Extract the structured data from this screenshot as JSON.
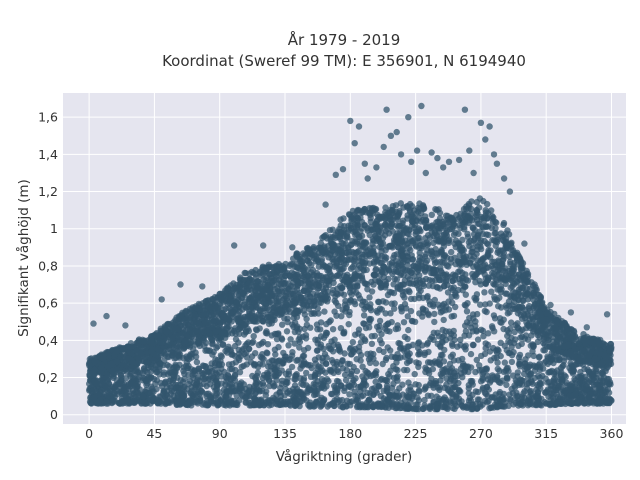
{
  "chart_data": {
    "type": "scatter",
    "title_line1": "År 1979 - 2019",
    "title_line2": "Koordinat (Sweref 99 TM): E 356901, N 6194940",
    "xlabel": "Vågriktning (grader)",
    "ylabel": "Signifikant våghöjd (m)",
    "xlim": [
      -18,
      370
    ],
    "ylim": [
      -0.05,
      1.73
    ],
    "x_ticks": [
      0,
      45,
      90,
      135,
      180,
      225,
      270,
      315,
      360
    ],
    "x_tick_labels": [
      "0",
      "45",
      "90",
      "135",
      "180",
      "225",
      "270",
      "315",
      "360"
    ],
    "y_ticks": [
      0,
      0.2,
      0.4,
      0.6,
      0.8,
      1,
      1.2,
      1.4,
      1.6
    ],
    "y_tick_labels": [
      "0",
      "0,2",
      "0,4",
      "0,6",
      "0,8",
      "1",
      "1,2",
      "1,4",
      "1,6"
    ],
    "grid": true,
    "marker_color": "#33566e",
    "plot_background": "#e5e5ef",
    "envelope": {
      "x": [
        0,
        20,
        45,
        70,
        90,
        110,
        135,
        160,
        180,
        200,
        225,
        250,
        270,
        285,
        300,
        315,
        335,
        360
      ],
      "y_upper": [
        0.3,
        0.36,
        0.44,
        0.58,
        0.65,
        0.78,
        0.83,
        0.95,
        1.1,
        1.12,
        1.15,
        1.08,
        1.18,
        1.05,
        0.8,
        0.58,
        0.45,
        0.38
      ],
      "y_lower": [
        0.06,
        0.06,
        0.06,
        0.05,
        0.05,
        0.05,
        0.05,
        0.04,
        0.04,
        0.04,
        0.03,
        0.03,
        0.03,
        0.04,
        0.05,
        0.05,
        0.06,
        0.06
      ]
    },
    "outliers": [
      {
        "x": 3,
        "y": 0.49
      },
      {
        "x": 12,
        "y": 0.53
      },
      {
        "x": 25,
        "y": 0.48
      },
      {
        "x": 50,
        "y": 0.62
      },
      {
        "x": 63,
        "y": 0.7
      },
      {
        "x": 78,
        "y": 0.69
      },
      {
        "x": 100,
        "y": 0.91
      },
      {
        "x": 120,
        "y": 0.91
      },
      {
        "x": 140,
        "y": 0.9
      },
      {
        "x": 163,
        "y": 1.13
      },
      {
        "x": 170,
        "y": 1.29
      },
      {
        "x": 175,
        "y": 1.32
      },
      {
        "x": 180,
        "y": 1.58
      },
      {
        "x": 183,
        "y": 1.46
      },
      {
        "x": 186,
        "y": 1.55
      },
      {
        "x": 190,
        "y": 1.35
      },
      {
        "x": 192,
        "y": 1.27
      },
      {
        "x": 198,
        "y": 1.33
      },
      {
        "x": 203,
        "y": 1.44
      },
      {
        "x": 205,
        "y": 1.64
      },
      {
        "x": 208,
        "y": 1.5
      },
      {
        "x": 212,
        "y": 1.52
      },
      {
        "x": 215,
        "y": 1.4
      },
      {
        "x": 220,
        "y": 1.6
      },
      {
        "x": 222,
        "y": 1.36
      },
      {
        "x": 226,
        "y": 1.42
      },
      {
        "x": 229,
        "y": 1.66
      },
      {
        "x": 232,
        "y": 1.3
      },
      {
        "x": 236,
        "y": 1.41
      },
      {
        "x": 240,
        "y": 1.38
      },
      {
        "x": 244,
        "y": 1.33
      },
      {
        "x": 248,
        "y": 1.36
      },
      {
        "x": 255,
        "y": 1.37
      },
      {
        "x": 259,
        "y": 1.64
      },
      {
        "x": 262,
        "y": 1.42
      },
      {
        "x": 265,
        "y": 1.3
      },
      {
        "x": 270,
        "y": 1.57
      },
      {
        "x": 273,
        "y": 1.48
      },
      {
        "x": 276,
        "y": 1.55
      },
      {
        "x": 279,
        "y": 1.4
      },
      {
        "x": 281,
        "y": 1.35
      },
      {
        "x": 286,
        "y": 1.27
      },
      {
        "x": 290,
        "y": 1.2
      },
      {
        "x": 300,
        "y": 0.92
      },
      {
        "x": 307,
        "y": 0.7
      },
      {
        "x": 318,
        "y": 0.59
      },
      {
        "x": 332,
        "y": 0.55
      },
      {
        "x": 343,
        "y": 0.47
      },
      {
        "x": 357,
        "y": 0.54
      }
    ]
  }
}
